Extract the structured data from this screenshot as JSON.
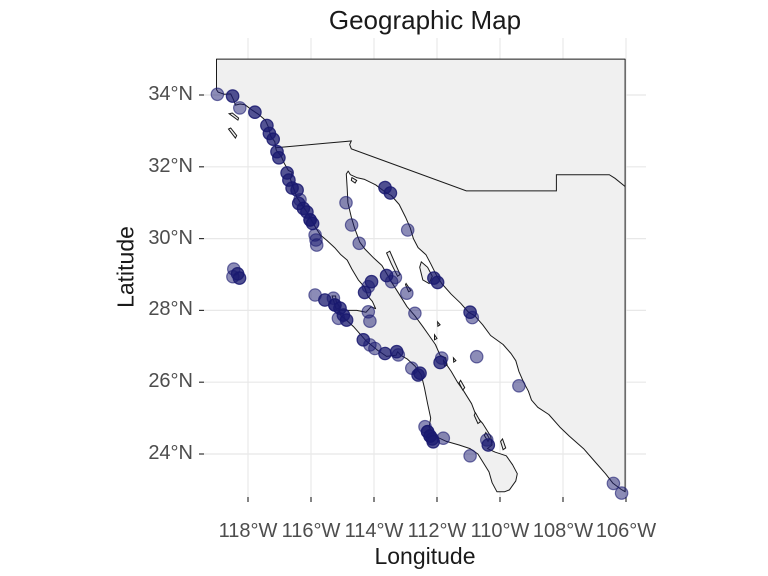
{
  "title": "Geographic Map",
  "axes": {
    "x": {
      "label": "Longitude",
      "ticks": [
        {
          "value": -118,
          "label": "118°W"
        },
        {
          "value": -116,
          "label": "116°W"
        },
        {
          "value": -114,
          "label": "114°W"
        },
        {
          "value": -112,
          "label": "112°W"
        },
        {
          "value": -110,
          "label": "110°W"
        },
        {
          "value": -108,
          "label": "108°W"
        },
        {
          "value": -106,
          "label": "106°W"
        }
      ]
    },
    "y": {
      "label": "Latitude",
      "ticks": [
        {
          "value": 24,
          "label": "24°N"
        },
        {
          "value": 26,
          "label": "26°N"
        },
        {
          "value": 28,
          "label": "28°N"
        },
        {
          "value": 30,
          "label": "30°N"
        },
        {
          "value": 32,
          "label": "32°N"
        },
        {
          "value": 34,
          "label": "34°N"
        }
      ]
    }
  },
  "colors": {
    "background": "#ffffff",
    "grid": "#e8e8e8",
    "land_fill": "#f0f0f0",
    "land_stroke": "#1a1a1a",
    "tick_mark": "#333333",
    "tick_text": "#4d4d4d",
    "axis_text": "#1a1a1a",
    "point_fill": "#191970",
    "point_opacity": 0.5
  },
  "chart_data": {
    "type": "scatter",
    "title": "Geographic Map",
    "xlabel": "Longitude",
    "ylabel": "Latitude",
    "xlim": [
      -119.4,
      -105.4
    ],
    "ylim": [
      22.8,
      35.6
    ],
    "grid": true,
    "legend": "none",
    "region": "Baja California peninsula, Gulf of California and adjacent Pacific / Mexican mainland coast",
    "point_style": {
      "color": "#191970",
      "alpha": 0.5,
      "radius_px": 6.2
    },
    "points": [
      [
        -118.97,
        34.02,
        1
      ],
      [
        -118.49,
        33.97,
        2
      ],
      [
        -118.26,
        33.64,
        1
      ],
      [
        -117.78,
        33.52,
        2
      ],
      [
        -117.4,
        33.15,
        2
      ],
      [
        -117.32,
        32.93,
        2
      ],
      [
        -117.2,
        32.77,
        2
      ],
      [
        -117.08,
        32.42,
        2
      ],
      [
        -117.02,
        32.25,
        2
      ],
      [
        -116.76,
        31.83,
        2
      ],
      [
        -116.7,
        31.63,
        2
      ],
      [
        -116.6,
        31.41,
        2
      ],
      [
        -116.44,
        31.35,
        2
      ],
      [
        -116.35,
        31.08,
        1
      ],
      [
        -116.39,
        30.98,
        2
      ],
      [
        -116.24,
        30.84,
        2
      ],
      [
        -116.13,
        30.74,
        2
      ],
      [
        -116.03,
        30.52,
        3
      ],
      [
        -115.95,
        30.42,
        2
      ],
      [
        -115.87,
        30.1,
        1
      ],
      [
        -115.84,
        29.96,
        1
      ],
      [
        -115.82,
        29.82,
        1
      ],
      [
        -118.45,
        29.15,
        1
      ],
      [
        -118.33,
        29.02,
        2
      ],
      [
        -118.27,
        28.9,
        2
      ],
      [
        -118.48,
        28.94,
        1
      ],
      [
        -114.89,
        31.0,
        1
      ],
      [
        -114.71,
        30.38,
        1
      ],
      [
        -114.47,
        29.87,
        1
      ],
      [
        -113.65,
        31.42,
        2
      ],
      [
        -113.48,
        31.27,
        2
      ],
      [
        -113.6,
        28.97,
        2
      ],
      [
        -113.44,
        28.8,
        1
      ],
      [
        -113.32,
        28.92,
        1
      ],
      [
        -112.93,
        30.24,
        1
      ],
      [
        -112.96,
        28.48,
        1
      ],
      [
        -112.1,
        28.9,
        2
      ],
      [
        -111.98,
        28.78,
        2
      ],
      [
        -110.95,
        27.95,
        2
      ],
      [
        -110.88,
        27.8,
        1
      ],
      [
        -110.74,
        26.71,
        1
      ],
      [
        -109.4,
        25.9,
        1
      ],
      [
        -114.3,
        28.5,
        2
      ],
      [
        -114.18,
        28.66,
        1
      ],
      [
        -114.08,
        28.8,
        2
      ],
      [
        -114.18,
        27.96,
        1
      ],
      [
        -114.13,
        27.7,
        1
      ],
      [
        -115.87,
        28.43,
        1
      ],
      [
        -115.56,
        28.29,
        2
      ],
      [
        -115.29,
        28.34,
        1
      ],
      [
        -115.24,
        28.15,
        3
      ],
      [
        -115.08,
        28.06,
        2
      ],
      [
        -114.97,
        27.87,
        2
      ],
      [
        -115.13,
        27.78,
        1
      ],
      [
        -114.87,
        27.73,
        2
      ],
      [
        -114.34,
        27.18,
        2
      ],
      [
        -114.13,
        27.04,
        1
      ],
      [
        -113.97,
        26.94,
        1
      ],
      [
        -113.65,
        26.8,
        2
      ],
      [
        -113.28,
        26.85,
        2
      ],
      [
        -113.23,
        26.76,
        1
      ],
      [
        -112.8,
        26.39,
        1
      ],
      [
        -112.6,
        26.2,
        2
      ],
      [
        -112.54,
        26.25,
        2
      ],
      [
        -112.7,
        27.92,
        1
      ],
      [
        -111.85,
        26.67,
        1
      ],
      [
        -111.9,
        26.55,
        2
      ],
      [
        -112.38,
        24.76,
        1
      ],
      [
        -112.3,
        24.62,
        3
      ],
      [
        -112.22,
        24.5,
        3
      ],
      [
        -112.15,
        24.42,
        2
      ],
      [
        -112.12,
        24.34,
        2
      ],
      [
        -111.8,
        24.44,
        1
      ],
      [
        -110.95,
        23.95,
        1
      ],
      [
        -110.42,
        24.39,
        1
      ],
      [
        -110.37,
        24.25,
        2
      ],
      [
        -106.4,
        23.18,
        1
      ],
      [
        -106.14,
        22.91,
        1
      ]
    ]
  },
  "map_data": {
    "mainland": [
      [
        -119.0,
        35.0
      ],
      [
        -106.03,
        35.0
      ],
      [
        -106.03,
        22.95
      ],
      [
        -106.15,
        23.01
      ],
      [
        -106.42,
        23.19
      ],
      [
        -106.65,
        23.45
      ],
      [
        -106.95,
        23.75
      ],
      [
        -107.35,
        24.15
      ],
      [
        -107.8,
        24.5
      ],
      [
        -108.1,
        24.75
      ],
      [
        -108.45,
        25.1
      ],
      [
        -108.8,
        25.3
      ],
      [
        -109.0,
        25.5
      ],
      [
        -109.1,
        25.75
      ],
      [
        -109.25,
        26.0
      ],
      [
        -109.4,
        26.3
      ],
      [
        -109.5,
        26.6
      ],
      [
        -109.65,
        26.8
      ],
      [
        -109.9,
        27.05
      ],
      [
        -110.3,
        27.3
      ],
      [
        -110.55,
        27.6
      ],
      [
        -110.8,
        27.85
      ],
      [
        -111.0,
        27.95
      ],
      [
        -111.25,
        28.2
      ],
      [
        -111.55,
        28.45
      ],
      [
        -111.85,
        28.75
      ],
      [
        -112.0,
        28.95
      ],
      [
        -112.2,
        29.3
      ],
      [
        -112.35,
        29.55
      ],
      [
        -112.6,
        29.75
      ],
      [
        -112.75,
        30.0
      ],
      [
        -112.85,
        30.3
      ],
      [
        -113.0,
        30.6
      ],
      [
        -113.2,
        30.95
      ],
      [
        -113.45,
        31.2
      ],
      [
        -113.65,
        31.3
      ],
      [
        -113.95,
        31.5
      ],
      [
        -114.3,
        31.65
      ],
      [
        -114.55,
        31.7
      ],
      [
        -114.75,
        31.78
      ],
      [
        -114.82,
        31.88
      ],
      [
        -114.88,
        31.8
      ],
      [
        -114.85,
        31.4
      ],
      [
        -114.83,
        31.0
      ],
      [
        -114.72,
        30.6
      ],
      [
        -114.62,
        30.3
      ],
      [
        -114.45,
        29.9
      ],
      [
        -114.28,
        29.7
      ],
      [
        -114.0,
        29.45
      ],
      [
        -113.75,
        29.25
      ],
      [
        -113.55,
        28.95
      ],
      [
        -113.45,
        28.8
      ],
      [
        -113.2,
        28.45
      ],
      [
        -112.95,
        28.1
      ],
      [
        -112.7,
        27.85
      ],
      [
        -112.45,
        27.55
      ],
      [
        -112.25,
        27.3
      ],
      [
        -112.05,
        27.05
      ],
      [
        -111.9,
        26.75
      ],
      [
        -111.72,
        26.68
      ],
      [
        -111.68,
        26.48
      ],
      [
        -111.76,
        26.44
      ],
      [
        -111.8,
        26.62
      ],
      [
        -111.55,
        26.3
      ],
      [
        -111.35,
        26.0
      ],
      [
        -111.15,
        25.75
      ],
      [
        -110.9,
        25.4
      ],
      [
        -110.75,
        25.05
      ],
      [
        -110.55,
        24.85
      ],
      [
        -110.3,
        24.5
      ],
      [
        -110.25,
        24.25
      ],
      [
        -110.4,
        24.15
      ],
      [
        -110.15,
        24.05
      ],
      [
        -109.8,
        23.95
      ],
      [
        -109.6,
        23.7
      ],
      [
        -109.45,
        23.45
      ],
      [
        -109.5,
        23.25
      ],
      [
        -109.7,
        23.0
      ],
      [
        -109.85,
        22.95
      ],
      [
        -110.1,
        22.95
      ],
      [
        -110.25,
        23.2
      ],
      [
        -110.35,
        23.5
      ],
      [
        -110.7,
        24.0
      ],
      [
        -110.95,
        24.15
      ],
      [
        -111.3,
        24.25
      ],
      [
        -111.7,
        24.35
      ],
      [
        -111.95,
        24.45
      ],
      [
        -112.1,
        24.55
      ],
      [
        -112.25,
        24.75
      ],
      [
        -112.2,
        25.0
      ],
      [
        -112.3,
        25.4
      ],
      [
        -112.4,
        25.85
      ],
      [
        -112.5,
        26.2
      ],
      [
        -112.7,
        26.45
      ],
      [
        -112.95,
        26.65
      ],
      [
        -113.15,
        26.75
      ],
      [
        -113.25,
        26.85
      ],
      [
        -113.3,
        26.75
      ],
      [
        -113.6,
        26.72
      ],
      [
        -113.9,
        26.9
      ],
      [
        -114.25,
        27.15
      ],
      [
        -114.65,
        27.55
      ],
      [
        -114.9,
        27.75
      ],
      [
        -115.05,
        27.85
      ],
      [
        -115.1,
        28.0
      ],
      [
        -114.55,
        28.0
      ],
      [
        -114.25,
        27.95
      ],
      [
        -114.1,
        28.1
      ],
      [
        -113.95,
        28.05
      ],
      [
        -114.05,
        28.25
      ],
      [
        -114.2,
        28.4
      ],
      [
        -114.3,
        28.65
      ],
      [
        -114.5,
        28.85
      ],
      [
        -114.7,
        29.15
      ],
      [
        -114.85,
        29.4
      ],
      [
        -115.05,
        29.55
      ],
      [
        -115.25,
        29.75
      ],
      [
        -115.5,
        29.95
      ],
      [
        -115.7,
        30.1
      ],
      [
        -115.85,
        30.3
      ],
      [
        -115.95,
        30.45
      ],
      [
        -116.1,
        30.7
      ],
      [
        -116.3,
        30.95
      ],
      [
        -116.45,
        31.15
      ],
      [
        -116.65,
        31.65
      ],
      [
        -116.6,
        31.85
      ],
      [
        -116.72,
        31.9
      ],
      [
        -116.85,
        32.1
      ],
      [
        -116.95,
        32.3
      ],
      [
        -117.1,
        32.45
      ],
      [
        -117.12,
        32.53
      ],
      [
        -117.15,
        32.7
      ],
      [
        -117.28,
        32.85
      ],
      [
        -117.35,
        33.1
      ],
      [
        -117.45,
        33.3
      ],
      [
        -117.65,
        33.45
      ],
      [
        -117.9,
        33.6
      ],
      [
        -118.1,
        33.73
      ],
      [
        -118.25,
        33.75
      ],
      [
        -118.4,
        33.72
      ],
      [
        -118.45,
        33.85
      ],
      [
        -118.55,
        34.03
      ],
      [
        -118.75,
        34.02
      ],
      [
        -118.95,
        34.08
      ],
      [
        -119.0,
        34.15
      ]
    ],
    "border": [
      [
        -117.12,
        32.53
      ],
      [
        -116.5,
        32.58
      ],
      [
        -115.5,
        32.66
      ],
      [
        -114.72,
        32.72
      ],
      [
        -114.77,
        32.62
      ],
      [
        -114.72,
        32.5
      ],
      [
        -111.07,
        31.33
      ],
      [
        -108.21,
        31.33
      ],
      [
        -108.21,
        31.78
      ],
      [
        -106.53,
        31.78
      ],
      [
        -106.35,
        31.68
      ],
      [
        -106.03,
        31.45
      ]
    ],
    "islands": [
      [
        [
          -118.6,
          33.48
        ],
        [
          -118.32,
          33.3
        ],
        [
          -118.3,
          33.36
        ],
        [
          -118.5,
          33.5
        ]
      ],
      [
        [
          -118.62,
          33.05
        ],
        [
          -118.4,
          32.8
        ],
        [
          -118.36,
          32.87
        ],
        [
          -118.55,
          33.08
        ]
      ],
      [
        [
          -115.33,
          28.4
        ],
        [
          -115.2,
          28.03
        ],
        [
          -115.08,
          28.08
        ],
        [
          -115.2,
          28.25
        ],
        [
          -115.22,
          28.4
        ]
      ],
      [
        [
          -113.6,
          29.6
        ],
        [
          -113.45,
          29.3
        ],
        [
          -113.25,
          28.95
        ],
        [
          -113.17,
          29.0
        ],
        [
          -113.35,
          29.35
        ],
        [
          -113.5,
          29.65
        ]
      ],
      [
        [
          -112.55,
          29.2
        ],
        [
          -112.45,
          28.85
        ],
        [
          -112.25,
          28.75
        ],
        [
          -112.15,
          28.95
        ],
        [
          -112.3,
          29.2
        ],
        [
          -112.5,
          29.35
        ]
      ],
      [
        [
          -112.98,
          28.75
        ],
        [
          -112.83,
          28.55
        ],
        [
          -112.9,
          28.52
        ],
        [
          -113.0,
          28.72
        ]
      ],
      [
        [
          -114.7,
          31.7
        ],
        [
          -114.55,
          31.62
        ],
        [
          -114.6,
          31.55
        ],
        [
          -114.72,
          31.62
        ]
      ],
      [
        [
          -111.98,
          27.68
        ],
        [
          -111.9,
          27.6
        ],
        [
          -111.97,
          27.56
        ]
      ],
      [
        [
          -112.08,
          27.32
        ],
        [
          -112.0,
          27.22
        ],
        [
          -112.08,
          27.18
        ]
      ],
      [
        [
          -111.48,
          26.68
        ],
        [
          -111.4,
          26.6
        ],
        [
          -111.47,
          26.56
        ]
      ],
      [
        [
          -111.25,
          26.05
        ],
        [
          -111.12,
          25.85
        ],
        [
          -111.18,
          25.78
        ],
        [
          -111.3,
          25.98
        ]
      ],
      [
        [
          -110.78,
          25.15
        ],
        [
          -110.62,
          24.9
        ],
        [
          -110.7,
          24.85
        ],
        [
          -110.82,
          25.08
        ]
      ],
      [
        [
          -110.45,
          24.6
        ],
        [
          -110.33,
          24.42
        ],
        [
          -110.38,
          24.35
        ],
        [
          -110.5,
          24.52
        ]
      ],
      [
        [
          -109.92,
          24.42
        ],
        [
          -109.82,
          24.17
        ],
        [
          -109.9,
          24.12
        ],
        [
          -109.98,
          24.35
        ]
      ]
    ]
  }
}
